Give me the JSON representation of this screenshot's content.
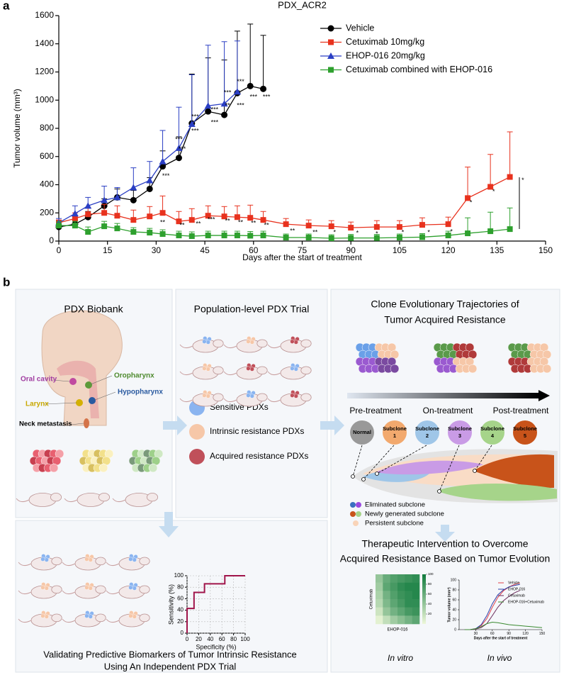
{
  "panel_labels": [
    "a",
    "b"
  ],
  "chart_data": [
    {
      "type": "line",
      "title": "PDX_ACR2",
      "x_label": "Days after the start of treatment",
      "y_label": "Tumor volume (mm³)",
      "xlim": [
        0,
        150
      ],
      "xticks": [
        0,
        15,
        30,
        45,
        60,
        75,
        90,
        105,
        120,
        135,
        150
      ],
      "ylim": [
        0,
        1600
      ],
      "yticks": [
        0,
        200,
        400,
        600,
        800,
        1000,
        1200,
        1400,
        1600
      ],
      "grid": false,
      "legend": "upper right",
      "series": [
        {
          "name": "Vehicle",
          "color": "#000000",
          "marker": "circle",
          "x": [
            0,
            5,
            9,
            14,
            18,
            23,
            28,
            32,
            37,
            41,
            46,
            51,
            55,
            59,
            63
          ],
          "values": [
            100,
            120,
            170,
            250,
            310,
            290,
            370,
            530,
            590,
            835,
            920,
            895,
            1050,
            1100,
            1080
          ],
          "errors": [
            20,
            30,
            40,
            50,
            60,
            70,
            80,
            110,
            150,
            350,
            380,
            390,
            440,
            440,
            380
          ]
        },
        {
          "name": "Cetuximab 10mg/kg",
          "color": "#e8321e",
          "marker": "square",
          "x": [
            0,
            5,
            9,
            14,
            18,
            23,
            28,
            32,
            37,
            41,
            46,
            51,
            55,
            59,
            63,
            70,
            77,
            84,
            90,
            98,
            105,
            112,
            120,
            126,
            133,
            139
          ],
          "values": [
            130,
            160,
            190,
            200,
            180,
            150,
            175,
            200,
            140,
            150,
            180,
            175,
            170,
            165,
            150,
            120,
            110,
            105,
            95,
            100,
            100,
            115,
            120,
            305,
            385,
            455
          ],
          "errors": [
            20,
            40,
            50,
            60,
            70,
            70,
            70,
            120,
            70,
            80,
            70,
            70,
            80,
            90,
            60,
            40,
            40,
            40,
            40,
            45,
            45,
            50,
            50,
            220,
            230,
            320
          ]
        },
        {
          "name": "EHOP-016 20mg/kg",
          "color": "#2b3fc4",
          "marker": "triangle",
          "x": [
            0,
            5,
            9,
            14,
            18,
            23,
            28,
            32,
            37,
            41,
            46,
            51,
            55
          ],
          "values": [
            130,
            195,
            250,
            290,
            310,
            380,
            430,
            565,
            660,
            830,
            960,
            975,
            1060
          ],
          "errors": [
            30,
            55,
            60,
            100,
            70,
            140,
            135,
            220,
            290,
            350,
            430,
            440,
            360
          ]
        },
        {
          "name": "Cetuximab combined with EHOP-016",
          "color": "#2ea02e",
          "marker": "square",
          "x": [
            0,
            5,
            9,
            14,
            18,
            23,
            28,
            32,
            37,
            41,
            46,
            51,
            55,
            59,
            63,
            70,
            77,
            84,
            90,
            98,
            105,
            112,
            120,
            126,
            133,
            139
          ],
          "values": [
            110,
            110,
            65,
            105,
            90,
            65,
            60,
            50,
            40,
            35,
            40,
            40,
            40,
            38,
            40,
            25,
            25,
            20,
            22,
            22,
            25,
            28,
            40,
            55,
            70,
            85
          ],
          "errors": [
            30,
            30,
            35,
            35,
            35,
            30,
            30,
            30,
            30,
            30,
            30,
            30,
            30,
            30,
            30,
            25,
            25,
            25,
            25,
            25,
            25,
            25,
            30,
            110,
            135,
            150
          ]
        }
      ],
      "annotations": [
        {
          "x": 33,
          "y": 460,
          "text": "***"
        },
        {
          "x": 38,
          "y": 650,
          "text": "***"
        },
        {
          "x": 37,
          "y": 720,
          "text": "***"
        },
        {
          "x": 42,
          "y": 780,
          "text": "***"
        },
        {
          "x": 42,
          "y": 880,
          "text": "***"
        },
        {
          "x": 48,
          "y": 840,
          "text": "***"
        },
        {
          "x": 48,
          "y": 930,
          "text": "***"
        },
        {
          "x": 52,
          "y": 960,
          "text": "**"
        },
        {
          "x": 52,
          "y": 1050,
          "text": "***"
        },
        {
          "x": 56,
          "y": 960,
          "text": "***"
        },
        {
          "x": 56,
          "y": 1130,
          "text": "***"
        },
        {
          "x": 60,
          "y": 1020,
          "text": "***"
        },
        {
          "x": 64,
          "y": 1020,
          "text": "***"
        },
        {
          "x": 32,
          "y": 130,
          "text": "**"
        },
        {
          "x": 38,
          "y": 110,
          "text": "**"
        },
        {
          "x": 43,
          "y": 120,
          "text": "**"
        },
        {
          "x": 47,
          "y": 150,
          "text": "***"
        },
        {
          "x": 52,
          "y": 140,
          "text": "**"
        },
        {
          "x": 56,
          "y": 130,
          "text": "**"
        },
        {
          "x": 60,
          "y": 125,
          "text": "**"
        },
        {
          "x": 64,
          "y": 110,
          "text": "**"
        },
        {
          "x": 72,
          "y": 70,
          "text": "**"
        },
        {
          "x": 79,
          "y": 60,
          "text": "**"
        },
        {
          "x": 85,
          "y": 60,
          "text": "*"
        },
        {
          "x": 92,
          "y": 55,
          "text": "*"
        },
        {
          "x": 98,
          "y": 50,
          "text": "*"
        },
        {
          "x": 106,
          "y": 60,
          "text": "*"
        },
        {
          "x": 114,
          "y": 60,
          "text": "*"
        },
        {
          "x": 121,
          "y": 65,
          "text": "*"
        },
        {
          "x": 127,
          "y": 270,
          "text": "*"
        },
        {
          "x": 134,
          "y": 350,
          "text": "*"
        },
        {
          "x": 143,
          "y": 430,
          "text": "*"
        }
      ]
    },
    {
      "type": "line",
      "x_label": "Specificity (%)",
      "y_label": "Sensitivity (%)",
      "xlim": [
        0,
        100
      ],
      "xticks": [
        0,
        20,
        40,
        60,
        80,
        100
      ],
      "ylim": [
        0,
        100
      ],
      "yticks": [
        0,
        20,
        40,
        60,
        80,
        100
      ],
      "grid": true,
      "series": [
        {
          "color": "#a0144a",
          "marker": "none",
          "x": [
            0,
            0,
            12,
            12,
            30,
            30,
            65,
            65,
            100
          ],
          "values": [
            0,
            43,
            43,
            71,
            71,
            86,
            86,
            100,
            100
          ]
        }
      ]
    },
    {
      "type": "heatmap",
      "x_label": "EHOP-016",
      "y_label": "Cetuximab",
      "zlim": [
        0,
        100
      ],
      "zticks": [
        20,
        40,
        60,
        80,
        100
      ],
      "values": [
        [
          40,
          60,
          70,
          75,
          80,
          85
        ],
        [
          35,
          65,
          75,
          85,
          90,
          90
        ],
        [
          30,
          55,
          70,
          80,
          85,
          90
        ],
        [
          25,
          50,
          65,
          75,
          85,
          85
        ],
        [
          15,
          40,
          55,
          65,
          75,
          80
        ],
        [
          5,
          20,
          35,
          45,
          55,
          65
        ]
      ]
    },
    {
      "type": "line",
      "x_label": "Days after the start of treatment",
      "y_label": "Tumor volume (mm³)",
      "grid": false,
      "legend": "upper right",
      "xlim": [
        0,
        150
      ],
      "xticks": [
        30,
        60,
        90,
        120,
        150
      ],
      "ylim": [
        0,
        100
      ],
      "yticks": [
        0,
        20,
        40,
        60,
        80,
        100
      ],
      "series": [
        {
          "name": "Vehicle",
          "color": "#e0404a",
          "marker": "none",
          "x": [
            10,
            20,
            30,
            40,
            50,
            60,
            70,
            80,
            90,
            100,
            110
          ],
          "values": [
            0,
            0,
            2,
            8,
            22,
            45,
            65,
            78,
            86,
            91,
            94
          ]
        },
        {
          "name": "EHOP-016",
          "color": "#2a3fa8",
          "marker": "none",
          "x": [
            10,
            20,
            30,
            40,
            50,
            60,
            70,
            80,
            90,
            100,
            110
          ],
          "values": [
            0,
            0,
            2,
            10,
            28,
            52,
            70,
            80,
            86,
            89,
            91
          ]
        },
        {
          "name": "Cetuximab",
          "color": "#6a2a5a",
          "marker": "none",
          "x": [
            10,
            20,
            30,
            40,
            50,
            60,
            70,
            80,
            90,
            100,
            110
          ],
          "values": [
            0,
            0,
            1,
            4,
            12,
            28,
            45,
            58,
            67,
            74,
            79
          ]
        },
        {
          "name": "EHOP-016+Cetuximab",
          "color": "#3a8a30",
          "marker": "none",
          "x": [
            10,
            20,
            30,
            40,
            50,
            60,
            70,
            80,
            90,
            100,
            110,
            120,
            130,
            140,
            150
          ],
          "values": [
            0,
            0,
            2,
            6,
            12,
            15,
            14,
            12,
            10,
            9,
            8,
            7,
            6,
            5,
            4
          ]
        }
      ]
    }
  ],
  "diagram": {
    "biobank_title": "PDX Biobank",
    "anatomy_labels": [
      "Oral cavity",
      "Oropharynx",
      "Hypopharynx",
      "Larynx",
      "Neck metastasis"
    ],
    "trial_title": "Population-level PDX Trial",
    "pdx_legend": [
      "Sensitive PDXs",
      "Intrinsic resistance PDXs",
      "Acquired resistance PDXs"
    ],
    "evolution_title": [
      "Clone Evolutionary Trajectories of",
      "Tumor Acquired Resistance"
    ],
    "stages": [
      "Pre-treatment",
      "On-treatment",
      "Post-treatment"
    ],
    "clones": [
      [
        "Normal"
      ],
      [
        "Subclone",
        "1"
      ],
      [
        "Subclone",
        "2"
      ],
      [
        "Subclone",
        "3"
      ],
      [
        "Subclone",
        "4"
      ],
      [
        "Subclone",
        "5"
      ]
    ],
    "subclone_legend": [
      "Eliminated subclone",
      "Newly generated subclone",
      "Persistent subclone"
    ],
    "intervention_title": [
      "Therapeutic Intervention to Overcome",
      "Acquired Resistance Based on Tumor Evolution"
    ],
    "captions": [
      "In vitro",
      "In vivo"
    ],
    "validation_title": [
      "Validating Predictive Biomarkers of Tumor Intrinsic Resistance",
      "Using An Independent PDX Trial"
    ]
  }
}
